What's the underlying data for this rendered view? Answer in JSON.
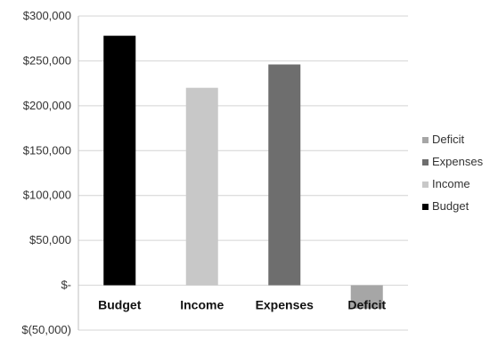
{
  "chart_data": {
    "type": "bar",
    "title": "",
    "xlabel": "",
    "ylabel": "",
    "categories": [
      "Budget",
      "Income",
      "Expenses",
      "Deficit"
    ],
    "series": [
      {
        "name": "Budget",
        "color": "#000000",
        "values": [
          278000,
          null,
          null,
          null
        ]
      },
      {
        "name": "Income",
        "color": "#c8c8c8",
        "values": [
          null,
          220000,
          null,
          null
        ]
      },
      {
        "name": "Expenses",
        "color": "#6e6e6e",
        "values": [
          null,
          null,
          246000,
          null
        ]
      },
      {
        "name": "Deficit",
        "color": "#a6a6a6",
        "values": [
          null,
          null,
          null,
          -26000
        ]
      }
    ],
    "ylim": [
      -50000,
      300000
    ],
    "y_ticks": [
      300000,
      250000,
      200000,
      150000,
      100000,
      50000,
      0,
      -50000
    ],
    "y_tick_labels": [
      "$300,000",
      "$250,000",
      "$200,000",
      "$150,000",
      "$100,000",
      "$50,000",
      "$-",
      "$(50,000)"
    ],
    "legend": {
      "position": "right",
      "order": [
        "Deficit",
        "Expenses",
        "Income",
        "Budget"
      ]
    },
    "grid": true
  }
}
